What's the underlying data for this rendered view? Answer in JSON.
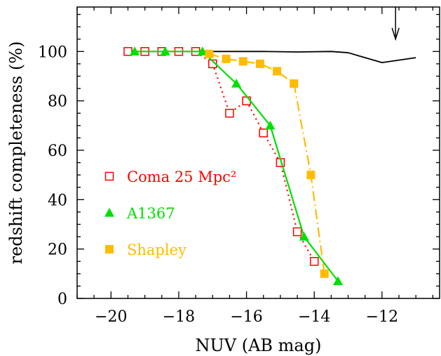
{
  "chart_data": {
    "type": "line",
    "title": "",
    "xlabel": "NUV (AB mag)",
    "ylabel": "redshift completeness (%)",
    "xlim": [
      -21,
      -10.3
    ],
    "ylim": [
      0,
      118
    ],
    "xticks": [
      -20,
      -18,
      -16,
      -14,
      -12
    ],
    "yticks": [
      0,
      20,
      40,
      60,
      80,
      100
    ],
    "xtick_labels": [
      "−20",
      "−18",
      "−16",
      "−14",
      "−12"
    ],
    "ytick_labels": [
      "0",
      "20",
      "40",
      "60",
      "80",
      "100"
    ],
    "grid": false,
    "legend_position": "left",
    "series": [
      {
        "name": "",
        "color": "#000000",
        "line": "solid",
        "marker": "none",
        "x": [
          -17.5,
          -16.5,
          -15.5,
          -14.5,
          -13.5,
          -13.0,
          -12.0,
          -11.0
        ],
        "y": [
          100,
          100,
          100,
          99.8,
          100,
          99.5,
          95.5,
          97.5
        ]
      },
      {
        "name": "Coma 25 Mpc²",
        "color": "#ff0000",
        "line": "dotted",
        "marker": "open-square",
        "x": [
          -19.5,
          -19.0,
          -18.5,
          -18.0,
          -17.5,
          -17.0,
          -16.5,
          -16.0,
          -15.5,
          -15.0,
          -14.5,
          -14.0
        ],
        "y": [
          100,
          100,
          100,
          100,
          100,
          95,
          75,
          80,
          67,
          55,
          27,
          15
        ]
      },
      {
        "name": "A1367",
        "color": "#00e000",
        "line": "solid",
        "marker": "filled-triangle",
        "x": [
          -19.3,
          -18.4,
          -17.3,
          -16.3,
          -15.3,
          -14.3,
          -13.3
        ],
        "y": [
          100,
          100,
          100,
          87,
          70,
          25,
          7
        ]
      },
      {
        "name": "Shapley",
        "color": "#ffbb00",
        "line": "dashdot",
        "marker": "filled-square",
        "x": [
          -17.1,
          -16.6,
          -16.1,
          -15.6,
          -15.1,
          -14.6,
          -14.1,
          -13.7
        ],
        "y": [
          99,
          97,
          96,
          95,
          92,
          87,
          50,
          10
        ]
      }
    ],
    "annotations": [
      {
        "type": "down-arrow",
        "x": -11.6,
        "y_top": 118,
        "y_bottom": 105
      }
    ]
  }
}
